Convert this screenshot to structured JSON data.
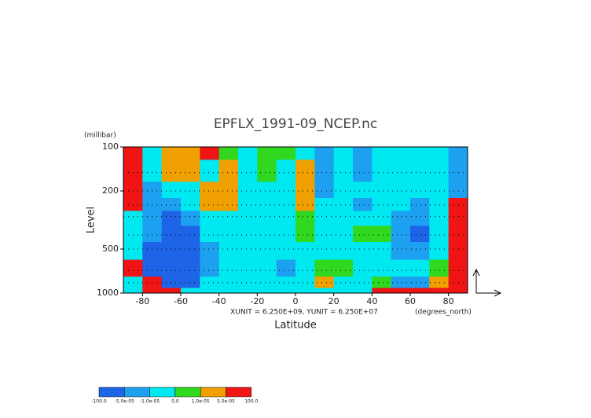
{
  "chart_data": {
    "type": "contour",
    "title": "EPFLX_1991-09_NCEP.nc",
    "y_unit": "(millibar)",
    "ylabel": "Level",
    "xlabel": "Latitude",
    "x_unit": "(degrees_north)",
    "annotation": "XUNIT = 6.250E+09, YUNIT = 6.250E+07",
    "xlim": [
      -90,
      90
    ],
    "xticks": [
      -80,
      -60,
      -40,
      -20,
      0,
      20,
      40,
      60,
      80
    ],
    "ylim": [
      1000,
      100
    ],
    "yticks": [
      100,
      200,
      500,
      1000
    ],
    "log_y": true,
    "field": {
      "x": [
        -85,
        -75,
        -65,
        -55,
        -45,
        -35,
        -25,
        -15,
        -5,
        5,
        15,
        25,
        35,
        45,
        55,
        65,
        75,
        85
      ],
      "y": [
        100,
        150,
        200,
        250,
        300,
        400,
        500,
        700,
        850,
        1000
      ],
      "z": [
        [
          0.0002,
          -5e-06,
          3e-05,
          3e-05,
          0.0002,
          5e-06,
          -5e-06,
          5e-06,
          5e-06,
          -5e-06,
          -3e-05,
          -5e-06,
          -3e-05,
          -5e-06,
          -5e-06,
          -5e-06,
          -5e-06,
          -3e-05
        ],
        [
          0.0002,
          -5e-06,
          3e-05,
          3e-05,
          -5e-06,
          3e-05,
          -5e-06,
          5e-06,
          -5e-06,
          3e-05,
          -3e-05,
          -5e-06,
          -3e-05,
          -5e-06,
          -5e-06,
          -5e-06,
          -5e-06,
          -3e-05
        ],
        [
          0.0002,
          -3e-05,
          -5e-06,
          -5e-06,
          3e-05,
          3e-05,
          -5e-06,
          -5e-06,
          -5e-06,
          3e-05,
          -3e-05,
          -5e-06,
          -5e-06,
          -5e-06,
          -5e-06,
          -5e-06,
          -5e-06,
          -3e-05
        ],
        [
          0.0002,
          -3e-05,
          -3e-05,
          -5e-06,
          3e-05,
          3e-05,
          -5e-06,
          -5e-06,
          -5e-06,
          3e-05,
          -5e-06,
          -5e-06,
          -3e-05,
          -5e-06,
          -5e-06,
          -3e-05,
          -5e-06,
          0.0002
        ],
        [
          -5e-06,
          -3e-05,
          -0.0002,
          -3e-05,
          -5e-06,
          -5e-06,
          -5e-06,
          -5e-06,
          -5e-06,
          5e-06,
          -5e-06,
          -5e-06,
          -5e-06,
          -5e-06,
          -3e-05,
          -3e-05,
          -5e-06,
          0.0002
        ],
        [
          -5e-06,
          -3e-05,
          -0.0002,
          -0.0002,
          -5e-06,
          -5e-06,
          -5e-06,
          -5e-06,
          -5e-06,
          5e-06,
          -5e-06,
          -5e-06,
          5e-06,
          5e-06,
          -3e-05,
          -0.0002,
          -5e-06,
          0.0002
        ],
        [
          -5e-06,
          -0.0002,
          -0.0002,
          -0.0002,
          -3e-05,
          -5e-06,
          -5e-06,
          -5e-06,
          -5e-06,
          -5e-06,
          -5e-06,
          -5e-06,
          -5e-06,
          -5e-06,
          -3e-05,
          -3e-05,
          -5e-06,
          0.0002
        ],
        [
          0.0002,
          -0.0002,
          -0.0002,
          -0.0002,
          -3e-05,
          -5e-06,
          -5e-06,
          -5e-06,
          -3e-05,
          -5e-06,
          5e-06,
          5e-06,
          -5e-06,
          -5e-06,
          -5e-06,
          -5e-06,
          5e-06,
          0.0002
        ],
        [
          -5e-06,
          0.0002,
          -0.0002,
          -0.0002,
          -5e-06,
          -5e-06,
          -5e-06,
          -5e-06,
          -5e-06,
          -5e-06,
          3e-05,
          -5e-06,
          -5e-06,
          5e-06,
          -3e-05,
          -3e-05,
          3e-05,
          0.0002
        ],
        [
          -5e-06,
          0.0002,
          0.0002,
          -5e-06,
          -5e-06,
          -5e-06,
          -5e-06,
          -5e-06,
          -5e-06,
          -5e-06,
          -5e-06,
          -5e-06,
          -5e-06,
          0.0002,
          0.0002,
          0.0002,
          0.0002,
          0.0002
        ]
      ]
    },
    "colorbar": {
      "levels": [
        {
          "value": -100,
          "label": "-100.0"
        },
        {
          "value": -5e-05,
          "label": "-5.0e-05"
        },
        {
          "value": -1e-05,
          "label": "-1.0e-05"
        },
        {
          "value": 0,
          "label": "0.0"
        },
        {
          "value": 1e-05,
          "label": "1.0e-05"
        },
        {
          "value": 5e-05,
          "label": "5.0e-05"
        },
        {
          "value": 100,
          "label": "100.0"
        }
      ],
      "colors": [
        "#1e64e6",
        "#1ea0f0",
        "#00e8f0",
        "#30d820",
        "#f0a000",
        "#f01414"
      ]
    }
  }
}
